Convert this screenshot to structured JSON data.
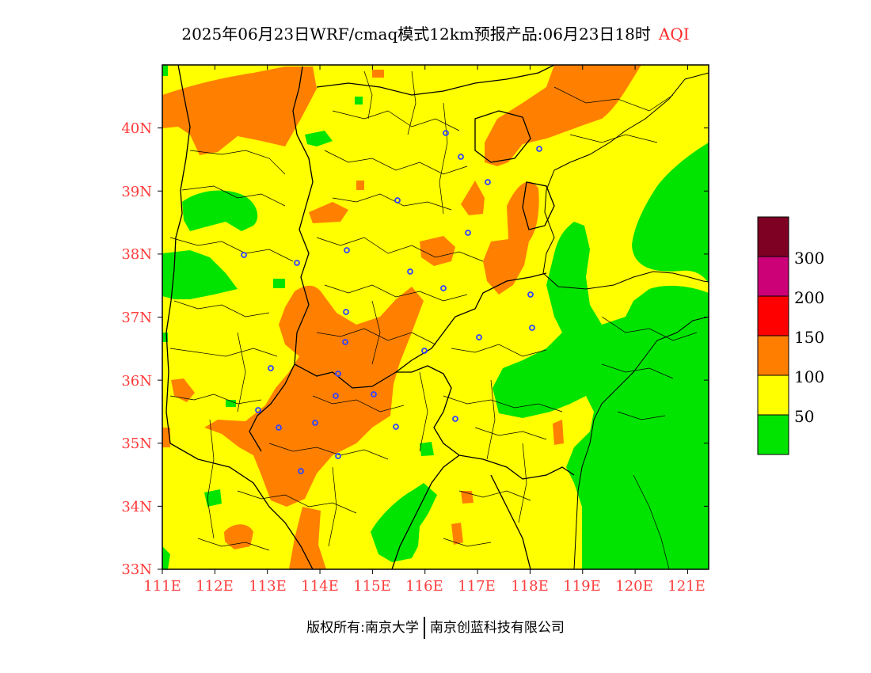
{
  "title": {
    "main": "2025年06月23日WRF/cmaq模式12km预报产品:06月23日18时",
    "pollutant": "AQI"
  },
  "map": {
    "lat_labels": [
      "40N",
      "39N",
      "38N",
      "37N",
      "36N",
      "35N",
      "34N",
      "33N"
    ],
    "lon_labels": [
      "111E",
      "112E",
      "113E",
      "114E",
      "115E",
      "116E",
      "117E",
      "118E",
      "119E",
      "120E",
      "121E"
    ],
    "axis_label_color": "#ff3b3b",
    "land_border_color": "#000000",
    "city_marker_color": "#3344ff"
  },
  "legend": {
    "levels": [
      "50",
      "100",
      "150",
      "200",
      "300"
    ],
    "colors": {
      "good": "#00e400",
      "moderate": "#ffff00",
      "unhealthy_sensitive": "#ff7e00",
      "unhealthy": "#ff0000",
      "very_unhealthy": "#cc0077",
      "hazardous": "#7e0023"
    }
  },
  "footer": {
    "copyright": "版权所有:南京大学",
    "company": "南京创蓝科技有限公司"
  }
}
